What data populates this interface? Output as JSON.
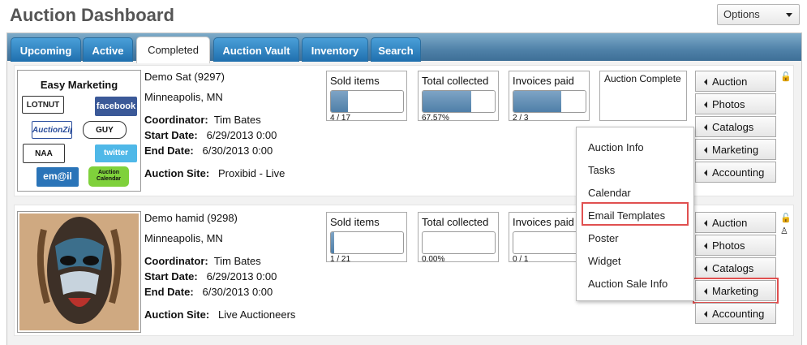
{
  "header": {
    "title": "Auction Dashboard",
    "options_label": "Options"
  },
  "tabs": [
    {
      "label": "Upcoming"
    },
    {
      "label": "Active"
    },
    {
      "label": "Completed"
    },
    {
      "label": "Auction Vault"
    },
    {
      "label": "Inventory"
    },
    {
      "label": "Search"
    }
  ],
  "active_tab": "Completed",
  "auctions": [
    {
      "title": "Demo Sat (9297)",
      "location": "Minneapolis, MN",
      "coordinator_label": "Coordinator:",
      "coordinator": "Tim Bates",
      "start_label": "Start Date:",
      "start": "6/29/2013 0:00",
      "end_label": "End Date:",
      "end": "6/30/2013 0:00",
      "site_label": "Auction Site:",
      "site": "Proxibid - Live",
      "image": {
        "title": "Easy Marketing",
        "logos": [
          "LOTNUT",
          "facebook",
          "AuctionZip",
          "GUY",
          "NAA",
          "twitter",
          "em@il",
          "Auction Calendar"
        ]
      },
      "stats": [
        {
          "label": "Sold items",
          "value": "4 / 17",
          "fill": 0.235
        },
        {
          "label": "Total collected",
          "value": "67.57%",
          "fill": 0.6757
        },
        {
          "label": "Invoices paid",
          "value": "2 / 3",
          "fill": 0.667
        }
      ],
      "status": "Auction Complete"
    },
    {
      "title": "Demo hamid (9298)",
      "location": "Minneapolis, MN",
      "coordinator_label": "Coordinator:",
      "coordinator": "Tim Bates",
      "start_label": "Start Date:",
      "start": "6/29/2013 0:00",
      "end_label": "End Date:",
      "end": "6/30/2013 0:00",
      "site_label": "Auction Site:",
      "site": "Live Auctioneers",
      "stats": [
        {
          "label": "Sold items",
          "value": "1 / 21",
          "fill": 0.048
        },
        {
          "label": "Total collected",
          "value": "0.00%",
          "fill": 0
        },
        {
          "label": "Invoices paid",
          "value": "0 / 1",
          "fill": 0
        }
      ]
    }
  ],
  "side_menu": [
    "Auction",
    "Photos",
    "Catalogs",
    "Marketing",
    "Accounting"
  ],
  "marketing_dropdown": [
    "Auction Info",
    "Tasks",
    "Calendar",
    "Email Templates",
    "Poster",
    "Widget",
    "Auction Sale Info"
  ],
  "colors": {
    "tab_blue": "#2f86c8",
    "highlight": "#e05050",
    "bar_fill": "#5f8db4"
  }
}
